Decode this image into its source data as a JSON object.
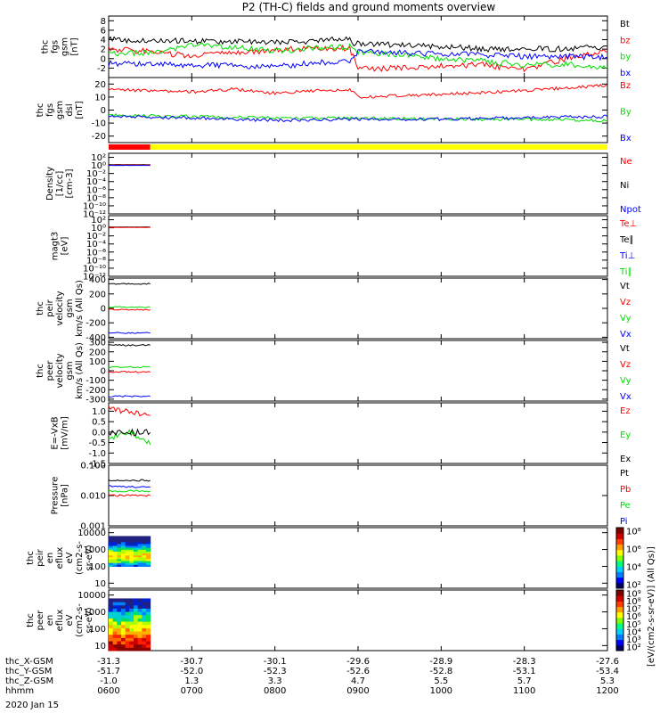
{
  "title": "P2 (TH-C) fields and ground moments overview",
  "date_label": "2020 Jan 15",
  "colors": {
    "black": "#000000",
    "red": "#ff0000",
    "green": "#00dd00",
    "blue": "#0000ff",
    "yellow": "#ffff00"
  },
  "x_labels": {
    "rows": [
      "thc_X-GSM",
      "thc_Y-GSM",
      "thc_Z-GSM",
      "hhmm"
    ],
    "columns": [
      [
        "-31.3",
        "-51.7",
        "-1.0",
        "0600"
      ],
      [
        "-30.7",
        "-52.0",
        "1.3",
        "0700"
      ],
      [
        "-30.1",
        "-52.3",
        "3.3",
        "0800"
      ],
      [
        "-29.6",
        "-52.6",
        "4.7",
        "0900"
      ],
      [
        "-28.9",
        "-52.8",
        "5.5",
        "1000"
      ],
      [
        "-28.3",
        "-53.1",
        "5.7",
        "1100"
      ],
      [
        "-27.6",
        "-53.4",
        "5.3",
        "1200"
      ]
    ]
  },
  "colorbar_label": "[eV/(cm2-s-sr-eV)] (All Qs)]",
  "chart_data": [
    {
      "id": "fgs_gsm",
      "type": "line",
      "ylabel": [
        "thc",
        "fgs",
        "gsm",
        "[nT]"
      ],
      "ylim": [
        -4,
        9
      ],
      "yticks": [
        "-2",
        "0",
        "2",
        "4",
        "6",
        "8"
      ],
      "ytick_values": [
        -2,
        0,
        2,
        4,
        6,
        8
      ],
      "legend": [
        "Bt",
        "bz",
        "by",
        "bx"
      ],
      "series": [
        {
          "name": "Bt",
          "color": "#000000",
          "x": [
            6,
            6.5,
            7,
            7.5,
            8,
            8.5,
            8.9,
            8.95,
            9.3,
            10,
            10.4,
            10.5,
            11,
            11.5,
            12
          ],
          "y": [
            4,
            3.8,
            3.7,
            3.6,
            3.5,
            3.7,
            4.5,
            3.2,
            3.0,
            2.5,
            2.2,
            2.0,
            2.1,
            2.0,
            2.6
          ]
        },
        {
          "name": "bz",
          "color": "#ff0000",
          "x": [
            6,
            6.5,
            7,
            7.3,
            7.6,
            8,
            8.5,
            8.9,
            9.0,
            9.5,
            10,
            10.5,
            11,
            11.5,
            12
          ],
          "y": [
            2,
            1.5,
            0.5,
            1.5,
            1.0,
            1.8,
            2.2,
            2.2,
            -2.2,
            -2.0,
            -1.5,
            -1.3,
            -2.4,
            0,
            1.5
          ]
        },
        {
          "name": "by",
          "color": "#00dd00",
          "x": [
            6,
            6.5,
            7,
            7.5,
            8,
            8.5,
            8.9,
            9.0,
            9.5,
            10,
            10.5,
            11,
            11.5,
            12
          ],
          "y": [
            1.0,
            1.2,
            2.8,
            2.5,
            1.5,
            2.2,
            2.5,
            1.5,
            0.8,
            0,
            -0.5,
            -1.4,
            -1.2,
            -1.8
          ]
        },
        {
          "name": "bx",
          "color": "#0000ff",
          "x": [
            6,
            6.5,
            7,
            7.5,
            8,
            8.5,
            8.9,
            9.0,
            9.5,
            10,
            10.5,
            11,
            11.5,
            12
          ],
          "y": [
            -1.0,
            -1.2,
            -1.5,
            -1.4,
            -1.8,
            -0.8,
            -0.5,
            1.5,
            1.2,
            1.0,
            0.8,
            0.5,
            0.5,
            0.3
          ]
        }
      ]
    },
    {
      "id": "fgs_dsl",
      "type": "line",
      "ylabel": [
        "thc",
        "fgs",
        "gsm",
        "dsl",
        "[nT]"
      ],
      "ylim": [
        -25,
        25
      ],
      "yticks": [
        "-20",
        "-10",
        "0",
        "10",
        "20"
      ],
      "ytick_values": [
        -20,
        -10,
        0,
        10,
        20
      ],
      "legend": [
        "Bz",
        "By",
        "Bx"
      ],
      "series": [
        {
          "name": "Bz",
          "color": "#ff0000",
          "x": [
            6,
            7,
            7.5,
            8,
            8.5,
            8.9,
            9.0,
            10,
            11,
            12
          ],
          "y": [
            16,
            14,
            16,
            13,
            15,
            16,
            10,
            12,
            15,
            19
          ]
        },
        {
          "name": "By",
          "color": "#00dd00",
          "x": [
            6,
            7,
            8,
            9,
            10,
            11,
            12
          ],
          "y": [
            -4,
            -5,
            -6,
            -6,
            -7,
            -7,
            -8
          ]
        },
        {
          "name": "Bx",
          "color": "#0000ff",
          "x": [
            6,
            7,
            8,
            9,
            10,
            11,
            12
          ],
          "y": [
            -5,
            -6,
            -8,
            -7,
            -7,
            -6,
            -5
          ]
        }
      ]
    },
    {
      "id": "mode_bar",
      "type": "bar",
      "segments": [
        {
          "from": 6,
          "to": 6.5,
          "color": "#ff0000"
        },
        {
          "from": 6.5,
          "to": 12,
          "color": "#ffff00"
        }
      ]
    },
    {
      "id": "density",
      "type": "line",
      "ylabel": [
        "Density",
        "[1/cc]",
        "[cm-3]"
      ],
      "ylog": true,
      "ylim": [
        -12,
        3
      ],
      "yticks": [
        "10²",
        "10⁰",
        "10⁻²",
        "10⁻⁴",
        "10⁻⁶",
        "10⁻⁸",
        "10⁻¹⁰",
        "10⁻¹²"
      ],
      "ytick_values": [
        2,
        0,
        -2,
        -4,
        -6,
        -8,
        -10,
        -12
      ],
      "legend": [
        "Ne",
        "Ni",
        "Npot"
      ],
      "series": [
        {
          "name": "Ni",
          "color": "#000000",
          "x": [
            6,
            6.5
          ],
          "y": [
            0.2,
            0.2
          ]
        },
        {
          "name": "Ne",
          "color": "#ff0000",
          "x": [
            6,
            6.5
          ],
          "y": [
            0.1,
            0.1
          ]
        },
        {
          "name": "Npot",
          "color": "#0000ff",
          "x": [
            6,
            6.5
          ],
          "y": [
            0,
            0
          ]
        }
      ]
    },
    {
      "id": "temp",
      "type": "line",
      "ylabel": [
        "magt3",
        "[eV]"
      ],
      "ylog": true,
      "ylim": [
        -12,
        3
      ],
      "yticks": [
        "10²",
        "10⁰",
        "10⁻²",
        "10⁻⁴",
        "10⁻⁶",
        "10⁻⁸",
        "10⁻¹⁰",
        "10⁻¹²"
      ],
      "ytick_values": [
        2,
        0,
        -2,
        -4,
        -6,
        -8,
        -10,
        -12
      ],
      "legend": [
        "Te⊥",
        "Te∥",
        "Ti⊥",
        "Ti∥"
      ],
      "series": [
        {
          "name": "Te∥",
          "color": "#000000",
          "x": [
            6,
            6.5
          ],
          "y": [
            0.2,
            0.2
          ]
        },
        {
          "name": "Te⊥",
          "color": "#ff0000",
          "x": [
            6,
            6.5
          ],
          "y": [
            0.1,
            0.1
          ]
        }
      ]
    },
    {
      "id": "peir_vel",
      "type": "line",
      "ylabel": [
        "thc",
        "peir",
        "velocity",
        "gsm",
        "km/s (All Qs)"
      ],
      "ylim": [
        -420,
        420
      ],
      "yticks": [
        "-400",
        "-200",
        "0",
        "200",
        "400"
      ],
      "ytick_values": [
        -400,
        -200,
        0,
        200,
        400
      ],
      "legend": [
        "Vt",
        "Vz",
        "Vy",
        "Vx"
      ],
      "series": [
        {
          "name": "Vt",
          "color": "#000000",
          "x": [
            6,
            6.5
          ],
          "y": [
            340,
            340
          ]
        },
        {
          "name": "Vy",
          "color": "#00dd00",
          "x": [
            6,
            6.5
          ],
          "y": [
            20,
            15
          ]
        },
        {
          "name": "Vz",
          "color": "#ff0000",
          "x": [
            6,
            6.5
          ],
          "y": [
            -15,
            -20
          ]
        },
        {
          "name": "Vx",
          "color": "#0000ff",
          "x": [
            6,
            6.5
          ],
          "y": [
            -340,
            -340
          ]
        }
      ]
    },
    {
      "id": "peer_vel",
      "type": "line",
      "ylabel": [
        "thc",
        "peer",
        "velocity",
        "gsm",
        "km/s (All Qs)"
      ],
      "ylim": [
        -320,
        320
      ],
      "yticks": [
        "-300",
        "-200",
        "-100",
        "0",
        "100",
        "200",
        "300"
      ],
      "ytick_values": [
        -300,
        -200,
        -100,
        0,
        100,
        200,
        300
      ],
      "legend": [
        "Vt",
        "Vz",
        "Vy",
        "Vx"
      ],
      "series": [
        {
          "name": "Vt",
          "color": "#000000",
          "x": [
            6,
            6.5
          ],
          "y": [
            270,
            270
          ]
        },
        {
          "name": "Vy",
          "color": "#00dd00",
          "x": [
            6,
            6.5
          ],
          "y": [
            40,
            40
          ]
        },
        {
          "name": "Vz",
          "color": "#ff0000",
          "x": [
            6,
            6.5
          ],
          "y": [
            -10,
            -15
          ]
        },
        {
          "name": "Vx",
          "color": "#0000ff",
          "x": [
            6,
            6.5
          ],
          "y": [
            -270,
            -270
          ]
        }
      ]
    },
    {
      "id": "efield",
      "type": "line",
      "ylabel": [
        "E=-VxB",
        "[mV/m]"
      ],
      "ylim": [
        -1.5,
        1.4
      ],
      "yticks": [
        "-1.5",
        "-1.0",
        "-0.5",
        "0.0",
        "0.5",
        "1.0"
      ],
      "ytick_values": [
        -1.5,
        -1,
        -0.5,
        0,
        0.5,
        1
      ],
      "legend": [
        "Ez",
        "Ey",
        "Ex"
      ],
      "series": [
        {
          "name": "Ez",
          "color": "#ff0000",
          "x": [
            6,
            6.25,
            6.5
          ],
          "y": [
            1.1,
            1.0,
            0.8
          ]
        },
        {
          "name": "Ey",
          "color": "#00dd00",
          "x": [
            6,
            6.25,
            6.5
          ],
          "y": [
            -0.3,
            0.0,
            -0.6
          ]
        },
        {
          "name": "Ex",
          "color": "#000000",
          "x": [
            6,
            6.5
          ],
          "y": [
            -0.02,
            -0.02
          ]
        }
      ]
    },
    {
      "id": "pressure",
      "type": "line",
      "ylabel": [
        "Pressure",
        "[nPa]"
      ],
      "ylog": true,
      "ylim": [
        -3,
        -1
      ],
      "yticks": [
        "0.100",
        "0.010",
        "0.001"
      ],
      "ytick_values": [
        -1,
        -2,
        -3
      ],
      "legend": [
        "Pt",
        "Pb",
        "Pe",
        "Pi"
      ],
      "series": [
        {
          "name": "Pt",
          "color": "#000000",
          "x": [
            6,
            6.5
          ],
          "y": [
            -1.5,
            -1.5
          ]
        },
        {
          "name": "Pi",
          "color": "#0000ff",
          "x": [
            6,
            6.5
          ],
          "y": [
            -1.7,
            -1.72
          ]
        },
        {
          "name": "Pe",
          "color": "#00dd00",
          "x": [
            6,
            6.5
          ],
          "y": [
            -1.85,
            -1.85
          ]
        },
        {
          "name": "Pb",
          "color": "#ff0000",
          "x": [
            6,
            6.5
          ],
          "y": [
            -2.0,
            -2.0
          ]
        }
      ]
    },
    {
      "id": "peir_flux",
      "type": "heatmap",
      "ylabel": [
        "thc",
        "peir",
        "en",
        "eflux",
        "eV",
        "(cm2-s-",
        "sr-eV)"
      ],
      "ylog": true,
      "ylim": [
        0.7,
        4.3
      ],
      "yticks": [
        "10",
        "100",
        "1000",
        "10000"
      ],
      "ytick_values": [
        1,
        2,
        3,
        4
      ],
      "xrange": [
        6,
        6.5
      ],
      "yrange": [
        2,
        3.8
      ],
      "colorbar_ticks": [
        "10⁸",
        "10⁶",
        "10⁴",
        "10²"
      ]
    },
    {
      "id": "peer_flux",
      "type": "heatmap",
      "ylabel": [
        "thc",
        "peer",
        "en",
        "eflux",
        "eV",
        "(cm2-s-",
        "sr-eV)"
      ],
      "ylog": true,
      "ylim": [
        0.7,
        4.3
      ],
      "yticks": [
        "10",
        "100",
        "1000",
        "10000"
      ],
      "ytick_values": [
        1,
        2,
        3,
        4
      ],
      "xrange": [
        6,
        6.5
      ],
      "yrange": [
        0.7,
        3.8
      ],
      "colorbar_ticks": [
        "10⁹",
        "10⁸",
        "10⁷",
        "10⁶",
        "10⁵",
        "10⁴",
        "10³",
        "10²"
      ]
    }
  ]
}
